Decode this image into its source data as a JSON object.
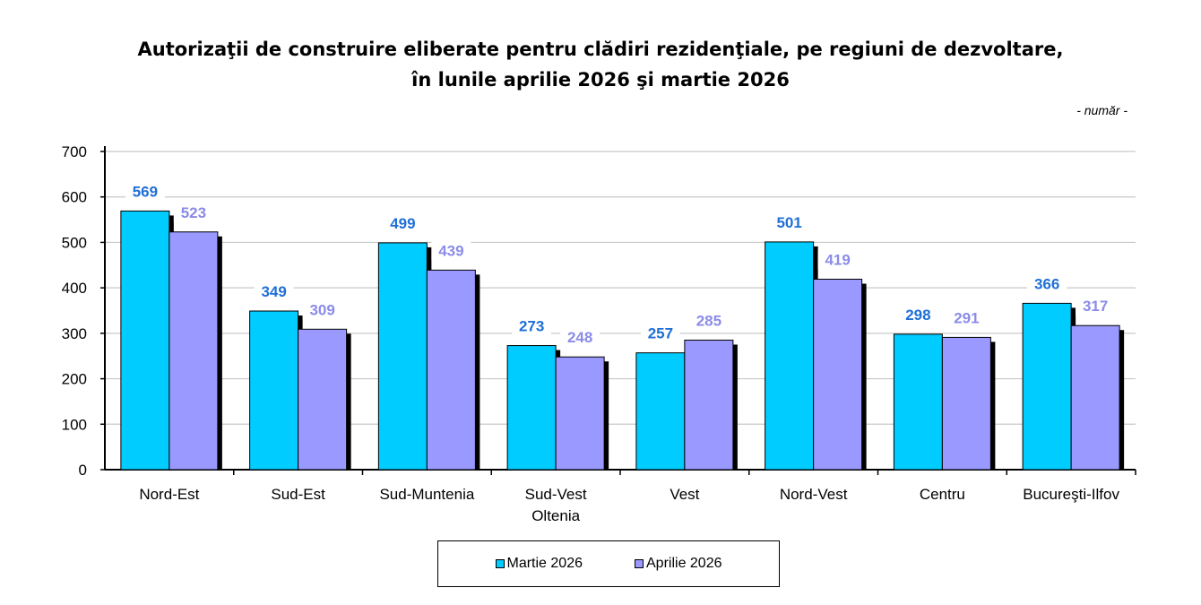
{
  "chart_data": {
    "type": "bar",
    "title_lines": [
      "Autorizaţii de construire eliberate pentru clădiri rezidenţiale, pe regiuni de dezvoltare,",
      "în lunile aprilie 2026 şi martie 2026"
    ],
    "unit_label": "- număr -",
    "categories": [
      [
        "Nord-Est"
      ],
      [
        "Sud-Est"
      ],
      [
        "Sud-Muntenia"
      ],
      [
        "Sud-Vest",
        "Oltenia"
      ],
      [
        "Vest"
      ],
      [
        "Nord-Vest"
      ],
      [
        "Centru"
      ],
      [
        "Bucureşti-Ilfov"
      ]
    ],
    "series": [
      {
        "name": "Martie 2026",
        "color": "#00CCFF",
        "label_color": "#1F6FD6",
        "values": [
          569,
          349,
          499,
          273,
          257,
          501,
          298,
          366
        ]
      },
      {
        "name": "Aprilie 2026",
        "color": "#9999FF",
        "label_color": "#8B8BE8",
        "values": [
          523,
          309,
          439,
          248,
          285,
          419,
          291,
          317
        ]
      }
    ],
    "yticks": [
      0,
      100,
      200,
      300,
      400,
      500,
      600,
      700
    ],
    "ylim": [
      0,
      700
    ],
    "grid": true,
    "legend_position": "bottom"
  }
}
